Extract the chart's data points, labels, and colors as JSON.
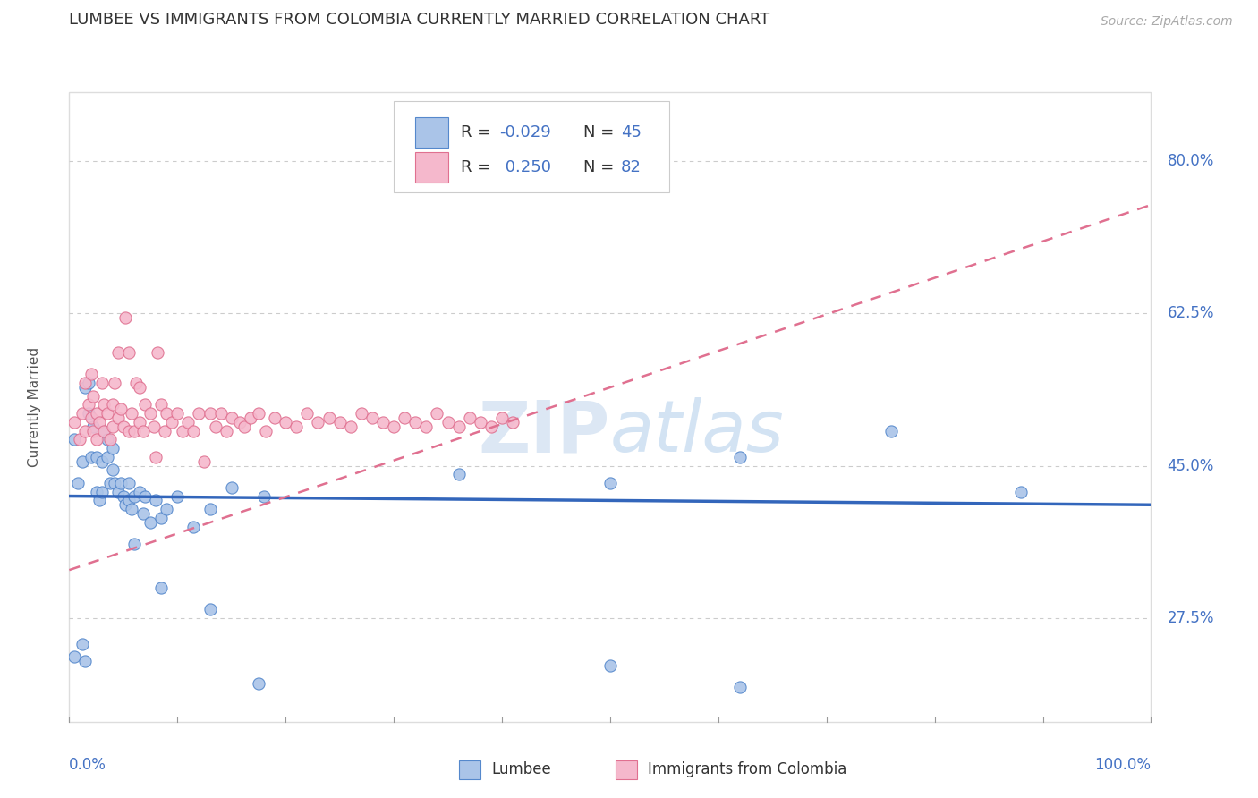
{
  "title": "LUMBEE VS IMMIGRANTS FROM COLOMBIA CURRENTLY MARRIED CORRELATION CHART",
  "source": "Source: ZipAtlas.com",
  "ylabel": "Currently Married",
  "y_ticks": [
    0.275,
    0.45,
    0.625,
    0.8
  ],
  "y_tick_labels": [
    "27.5%",
    "45.0%",
    "62.5%",
    "80.0%"
  ],
  "x_min": 0.0,
  "x_max": 1.0,
  "y_min": 0.155,
  "y_max": 0.88,
  "legend_r1_label": "R = -0.029",
  "legend_n1_label": "N = 45",
  "legend_r2_label": "R =  0.250",
  "legend_n2_label": "N = 82",
  "color_lumbee_fill": "#aac4e8",
  "color_lumbee_edge": "#5588cc",
  "color_colombia_fill": "#f5b8cc",
  "color_colombia_edge": "#e07090",
  "color_lumbee_line": "#3366bb",
  "color_colombia_line": "#e07090",
  "color_title": "#333333",
  "color_source": "#aaaaaa",
  "color_axis_blue": "#4472c4",
  "color_legend_text": "#333333",
  "color_r_blue": "#4472c4",
  "watermark_color": "#c8dff0",
  "grid_color": "#cccccc",
  "border_color": "#dddddd",
  "lumbee_x": [
    0.005,
    0.008,
    0.012,
    0.015,
    0.018,
    0.018,
    0.02,
    0.022,
    0.025,
    0.025,
    0.028,
    0.03,
    0.03,
    0.032,
    0.035,
    0.035,
    0.038,
    0.04,
    0.04,
    0.042,
    0.045,
    0.048,
    0.05,
    0.052,
    0.055,
    0.055,
    0.058,
    0.06,
    0.065,
    0.068,
    0.07,
    0.075,
    0.08,
    0.085,
    0.09,
    0.1,
    0.115,
    0.13,
    0.15,
    0.18,
    0.36,
    0.5,
    0.62,
    0.76,
    0.88
  ],
  "lumbee_y": [
    0.48,
    0.43,
    0.455,
    0.54,
    0.545,
    0.51,
    0.46,
    0.495,
    0.46,
    0.42,
    0.41,
    0.455,
    0.42,
    0.49,
    0.48,
    0.46,
    0.43,
    0.445,
    0.47,
    0.43,
    0.42,
    0.43,
    0.415,
    0.405,
    0.43,
    0.41,
    0.4,
    0.415,
    0.42,
    0.395,
    0.415,
    0.385,
    0.41,
    0.39,
    0.4,
    0.415,
    0.38,
    0.4,
    0.425,
    0.415,
    0.44,
    0.43,
    0.46,
    0.49,
    0.42
  ],
  "colombia_x": [
    0.005,
    0.01,
    0.012,
    0.015,
    0.015,
    0.018,
    0.02,
    0.02,
    0.022,
    0.022,
    0.025,
    0.025,
    0.028,
    0.03,
    0.032,
    0.032,
    0.035,
    0.038,
    0.04,
    0.04,
    0.042,
    0.045,
    0.045,
    0.048,
    0.05,
    0.052,
    0.055,
    0.055,
    0.058,
    0.06,
    0.062,
    0.065,
    0.065,
    0.068,
    0.07,
    0.075,
    0.078,
    0.08,
    0.082,
    0.085,
    0.088,
    0.09,
    0.095,
    0.1,
    0.105,
    0.11,
    0.115,
    0.12,
    0.125,
    0.13,
    0.135,
    0.14,
    0.145,
    0.15,
    0.158,
    0.162,
    0.168,
    0.175,
    0.182,
    0.19,
    0.2,
    0.21,
    0.22,
    0.23,
    0.24,
    0.25,
    0.26,
    0.27,
    0.28,
    0.29,
    0.3,
    0.31,
    0.32,
    0.33,
    0.34,
    0.35,
    0.36,
    0.37,
    0.38,
    0.39,
    0.4,
    0.41
  ],
  "colombia_y": [
    0.5,
    0.48,
    0.51,
    0.49,
    0.545,
    0.52,
    0.505,
    0.555,
    0.49,
    0.53,
    0.48,
    0.51,
    0.5,
    0.545,
    0.52,
    0.49,
    0.51,
    0.48,
    0.495,
    0.52,
    0.545,
    0.505,
    0.58,
    0.515,
    0.495,
    0.62,
    0.58,
    0.49,
    0.51,
    0.49,
    0.545,
    0.5,
    0.54,
    0.49,
    0.52,
    0.51,
    0.495,
    0.46,
    0.58,
    0.52,
    0.49,
    0.51,
    0.5,
    0.51,
    0.49,
    0.5,
    0.49,
    0.51,
    0.455,
    0.51,
    0.495,
    0.51,
    0.49,
    0.505,
    0.5,
    0.495,
    0.505,
    0.51,
    0.49,
    0.505,
    0.5,
    0.495,
    0.51,
    0.5,
    0.505,
    0.5,
    0.495,
    0.51,
    0.505,
    0.5,
    0.495,
    0.505,
    0.5,
    0.495,
    0.51,
    0.5,
    0.495,
    0.505,
    0.5,
    0.495,
    0.505,
    0.5
  ],
  "lumbee_low_x": [
    0.005,
    0.012,
    0.015,
    0.06,
    0.085,
    0.13,
    0.175,
    0.5,
    0.62
  ],
  "lumbee_low_y": [
    0.23,
    0.245,
    0.225,
    0.36,
    0.31,
    0.285,
    0.2,
    0.22,
    0.195
  ]
}
